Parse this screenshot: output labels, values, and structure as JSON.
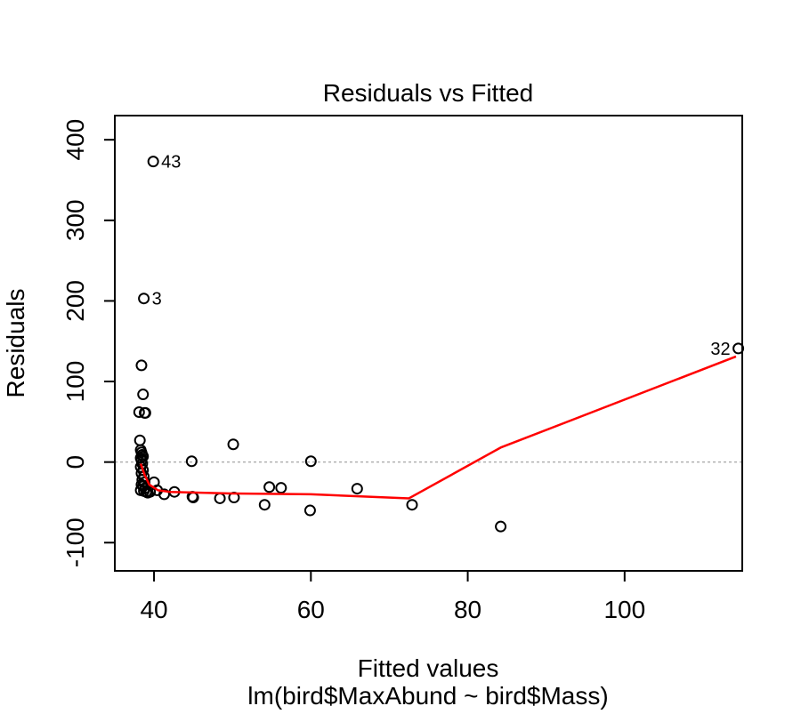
{
  "chart_data": {
    "type": "scatter",
    "title": "Residuals vs Fitted",
    "xlabel": "Fitted values",
    "subtitle": "lm(bird$MaxAbund ~ bird$Mass)",
    "ylabel": "Residuals",
    "xlim": [
      35,
      115
    ],
    "ylim": [
      -135,
      430
    ],
    "xticks": [
      40,
      60,
      80,
      100
    ],
    "yticks": [
      -100,
      0,
      100,
      200,
      300,
      400
    ],
    "reference_line_y": 0,
    "points": [
      {
        "x": 39.9,
        "y": 373,
        "label": "43"
      },
      {
        "x": 38.7,
        "y": 203,
        "label": "3"
      },
      {
        "x": 114.5,
        "y": 141,
        "label": "32"
      },
      {
        "x": 38.4,
        "y": 120
      },
      {
        "x": 38.6,
        "y": 84
      },
      {
        "x": 38.1,
        "y": 62
      },
      {
        "x": 38.8,
        "y": 61
      },
      {
        "x": 38.9,
        "y": 61
      },
      {
        "x": 38.2,
        "y": 27
      },
      {
        "x": 38.3,
        "y": 15
      },
      {
        "x": 38.4,
        "y": 12
      },
      {
        "x": 38.5,
        "y": 9
      },
      {
        "x": 38.6,
        "y": 7
      },
      {
        "x": 38.3,
        "y": 5
      },
      {
        "x": 38.4,
        "y": 2
      },
      {
        "x": 38.5,
        "y": -2
      },
      {
        "x": 38.3,
        "y": -6
      },
      {
        "x": 38.6,
        "y": -10
      },
      {
        "x": 38.4,
        "y": -14
      },
      {
        "x": 38.7,
        "y": -18
      },
      {
        "x": 38.5,
        "y": -22
      },
      {
        "x": 38.8,
        "y": -25
      },
      {
        "x": 38.4,
        "y": -28
      },
      {
        "x": 38.6,
        "y": -30
      },
      {
        "x": 38.9,
        "y": -32
      },
      {
        "x": 38.3,
        "y": -35
      },
      {
        "x": 38.7,
        "y": -36
      },
      {
        "x": 39.0,
        "y": -37
      },
      {
        "x": 39.2,
        "y": -38
      },
      {
        "x": 39.5,
        "y": -37
      },
      {
        "x": 40.0,
        "y": -25
      },
      {
        "x": 40.4,
        "y": -35
      },
      {
        "x": 41.3,
        "y": -40
      },
      {
        "x": 42.6,
        "y": -37
      },
      {
        "x": 44.8,
        "y": 1
      },
      {
        "x": 44.9,
        "y": -43
      },
      {
        "x": 45.0,
        "y": -44
      },
      {
        "x": 48.4,
        "y": -45
      },
      {
        "x": 50.1,
        "y": 22
      },
      {
        "x": 50.2,
        "y": -44
      },
      {
        "x": 54.1,
        "y": -53
      },
      {
        "x": 54.7,
        "y": -31
      },
      {
        "x": 56.2,
        "y": -32
      },
      {
        "x": 59.9,
        "y": -60
      },
      {
        "x": 60.0,
        "y": 1
      },
      {
        "x": 65.9,
        "y": -33
      },
      {
        "x": 72.9,
        "y": -53
      },
      {
        "x": 84.2,
        "y": -80
      }
    ],
    "smooth_line": [
      {
        "x": 38.3,
        "y": -2
      },
      {
        "x": 38.8,
        "y": -16
      },
      {
        "x": 39.4,
        "y": -28
      },
      {
        "x": 40.5,
        "y": -35
      },
      {
        "x": 42.0,
        "y": -37
      },
      {
        "x": 50.0,
        "y": -39
      },
      {
        "x": 60.0,
        "y": -40
      },
      {
        "x": 72.5,
        "y": -45
      },
      {
        "x": 84.2,
        "y": 18
      },
      {
        "x": 114.2,
        "y": 131
      }
    ],
    "colors": {
      "points": "#000000",
      "smooth": "#ff0000",
      "zero_line": "#b0b0b0"
    }
  }
}
